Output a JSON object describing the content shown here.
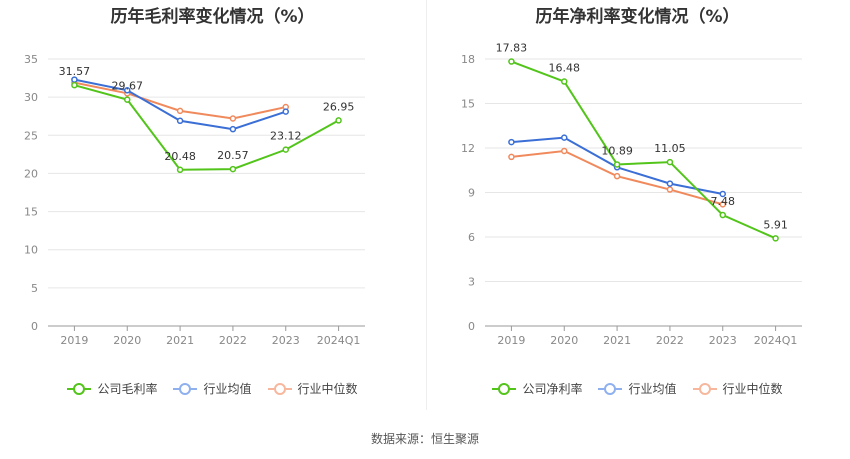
{
  "source": "数据来源：恒生聚源",
  "legend_colors": [
    "#52c41a",
    "#3b6fd6",
    "#f08a5d"
  ],
  "legend_light_colors": [
    "#52c41a",
    "#8fb0ef",
    "#f7b79d"
  ],
  "chart_data": [
    {
      "type": "line",
      "title": "历年毛利率变化情况（%）",
      "categories": [
        "2019",
        "2020",
        "2021",
        "2022",
        "2023",
        "2024Q1"
      ],
      "ylim": [
        0,
        35
      ],
      "yticks": [
        0,
        5,
        10,
        15,
        20,
        25,
        30,
        35
      ],
      "grid": true,
      "legend_position": "bottom",
      "series": [
        {
          "name": "公司毛利率",
          "values": [
            31.57,
            29.67,
            20.48,
            20.57,
            23.12,
            26.95
          ],
          "labels": [
            "31.57",
            "29.67",
            "20.48",
            "20.57",
            "23.12",
            "26.95"
          ]
        },
        {
          "name": "行业均值",
          "values": [
            32.3,
            30.9,
            26.9,
            25.8,
            28.1,
            null
          ]
        },
        {
          "name": "行业中位数",
          "values": [
            31.9,
            30.5,
            28.2,
            27.2,
            28.7,
            null
          ]
        }
      ]
    },
    {
      "type": "line",
      "title": "历年净利率变化情况（%）",
      "categories": [
        "2019",
        "2020",
        "2021",
        "2022",
        "2023",
        "2024Q1"
      ],
      "ylim": [
        0,
        18
      ],
      "yticks": [
        0,
        3,
        6,
        9,
        12,
        15,
        18
      ],
      "grid": true,
      "legend_position": "bottom",
      "series": [
        {
          "name": "公司净利率",
          "values": [
            17.83,
            16.48,
            10.89,
            11.05,
            7.48,
            5.91
          ],
          "labels": [
            "17.83",
            "16.48",
            "10.89",
            "11.05",
            "7.48",
            "5.91"
          ]
        },
        {
          "name": "行业均值",
          "values": [
            12.4,
            12.7,
            10.7,
            9.6,
            8.9,
            null
          ]
        },
        {
          "name": "行业中位数",
          "values": [
            11.4,
            11.8,
            10.1,
            9.2,
            8.2,
            null
          ]
        }
      ]
    }
  ]
}
